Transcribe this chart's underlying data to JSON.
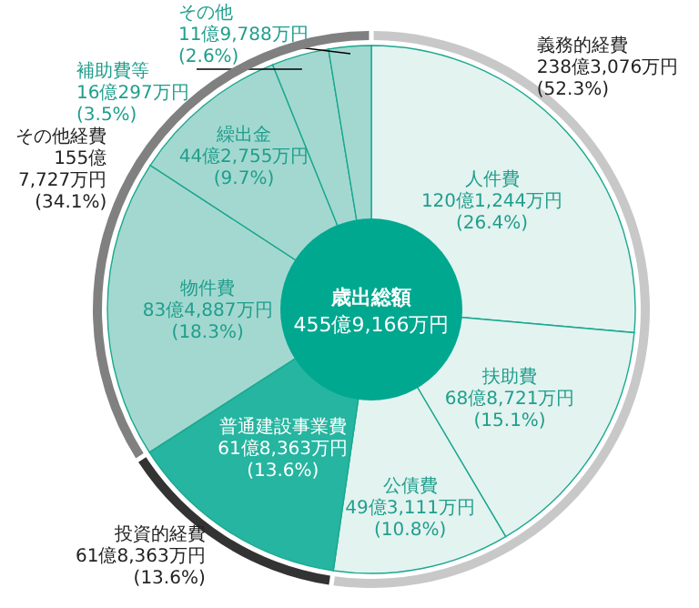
{
  "chart_data": [
    {
      "type": "donut",
      "categories": [
        "人件費",
        "扶助費",
        "公債費",
        "普通建設事業費",
        "物件費",
        "繰出金",
        "補助費等",
        "その他"
      ],
      "values": [
        26.4,
        15.1,
        10.8,
        13.6,
        18.3,
        9.7,
        3.5,
        2.6
      ],
      "colors": [
        "#e3f3f0",
        "#e3f3f0",
        "#e3f3f0",
        "#26b5a0",
        "#a3d8d0",
        "#a3d8d0",
        "#a3d8d0",
        "#a3d8d0"
      ],
      "value_labels": [
        "120億1,244万円\n(26.4%)",
        "68億8,721万円\n(15.1%)",
        "49億3,111万円\n(10.8%)",
        "61億8,363万円\n(13.6%)",
        "83億4,887万円\n(18.3%)",
        "44億2,755万円\n(9.7%)",
        "16億297万円\n(3.5%)",
        "11億9,788万円\n(2.6%)"
      ],
      "annotations": [
        "歳出総額",
        "455億9,166万円"
      ]
    },
    {
      "type": "donut",
      "categories": [
        "義務的経費",
        "投資的経費",
        "その他経費"
      ],
      "values": [
        52.3,
        13.6,
        34.1
      ],
      "colors": [
        "#c8c8c8",
        "#333333",
        "#808080"
      ],
      "value_labels": [
        "238億3,076万円\n(52.3%)",
        "61億8,363万円\n(13.6%)",
        "155億\n7,727万円\n(34.1%)"
      ]
    }
  ]
}
